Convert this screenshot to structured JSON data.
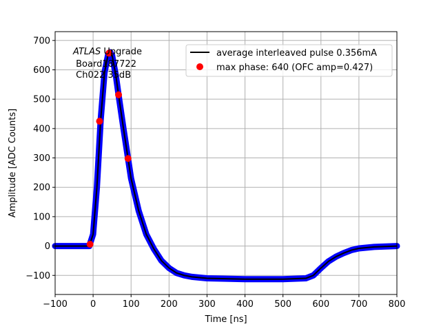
{
  "chart_data": {
    "type": "line",
    "title": "",
    "xlabel": "Time [ns]",
    "ylabel": "Amplitude [ADC Counts]",
    "xlim": [
      -100,
      800
    ],
    "ylim": [
      -165,
      730
    ],
    "xticks": [
      -100,
      0,
      100,
      200,
      300,
      400,
      500,
      600,
      700,
      800
    ],
    "yticks": [
      -100,
      0,
      100,
      200,
      300,
      400,
      500,
      600,
      700
    ],
    "grid": true,
    "legend_placement": "upper right",
    "annotation": {
      "italic": "ATLAS",
      "rest": " Upgrade",
      "line2": " Board187722",
      "line3": " Ch022 35dB"
    },
    "series": [
      {
        "kind": "scatter",
        "color": "#0000ff",
        "x": [
          -100,
          -10,
          0,
          10,
          20,
          30,
          40,
          45,
          50,
          60,
          67,
          80,
          92,
          100,
          120,
          140,
          160,
          180,
          200,
          220,
          240,
          260,
          300,
          400,
          500,
          560,
          580,
          600,
          620,
          640,
          660,
          680,
          700,
          740,
          800
        ],
        "y": [
          0,
          0,
          40,
          200,
          430,
          590,
          655,
          660,
          650,
          580,
          515,
          400,
          298,
          230,
          120,
          40,
          -10,
          -50,
          -75,
          -92,
          -100,
          -105,
          -110,
          -113,
          -113,
          -110,
          -100,
          -75,
          -52,
          -36,
          -24,
          -14,
          -8,
          -3,
          0
        ]
      },
      {
        "name": "average interleaved pulse 0.356mA",
        "kind": "line",
        "color": "#000000",
        "x": [
          -100,
          -10,
          0,
          10,
          20,
          30,
          40,
          45,
          50,
          60,
          67,
          80,
          92,
          100,
          120,
          140,
          160,
          180,
          200,
          220,
          240,
          260,
          300,
          400,
          500,
          560,
          580,
          600,
          620,
          640,
          660,
          680,
          700,
          740,
          800
        ],
        "y": [
          0,
          0,
          40,
          200,
          430,
          590,
          655,
          660,
          650,
          580,
          515,
          400,
          298,
          230,
          120,
          40,
          -10,
          -50,
          -75,
          -92,
          -100,
          -105,
          -110,
          -113,
          -113,
          -110,
          -100,
          -75,
          -52,
          -36,
          -24,
          -14,
          -8,
          -3,
          0
        ]
      },
      {
        "name": "max phase: 640 (OFC amp=0.427)",
        "kind": "scatter",
        "color": "#ff0000",
        "x": [
          -8,
          17,
          42,
          67,
          92
        ],
        "y": [
          6,
          425,
          657,
          515,
          298
        ]
      }
    ]
  }
}
